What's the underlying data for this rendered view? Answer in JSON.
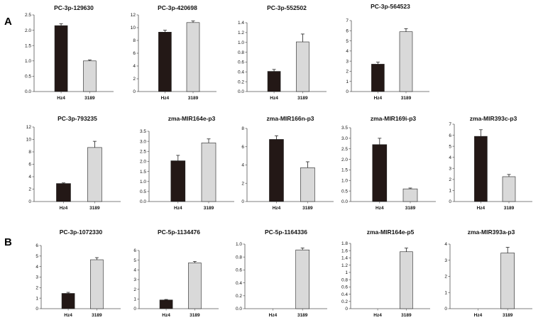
{
  "panels": {
    "a_label": "A",
    "b_label": "B"
  },
  "colors": {
    "dark_bar": "#231816",
    "light_bar": "#d9d9d9",
    "bar_stroke": "#222222",
    "axis": "#555555",
    "error_bar": "#222222"
  },
  "chart_data": [
    {
      "type": "bar",
      "title": "PC-3p-129630",
      "categories": [
        "Hz4",
        "3189"
      ],
      "values": [
        2.15,
        1.0
      ],
      "errors": [
        0.06,
        0.03
      ],
      "ylim": [
        0,
        2.5
      ],
      "yticks": [
        "0.0",
        "0.5",
        "1.0",
        "1.5",
        "2.0",
        "2.5"
      ],
      "xlabel": "",
      "ylabel": "",
      "grid": false
    },
    {
      "type": "bar",
      "title": "PC-3p-420698",
      "categories": [
        "Hz4",
        "3189"
      ],
      "values": [
        9.3,
        10.8
      ],
      "errors": [
        0.3,
        0.25
      ],
      "ylim": [
        0,
        12
      ],
      "yticks": [
        "0",
        "2",
        "4",
        "6",
        "8",
        "10",
        "12"
      ],
      "xlabel": "",
      "ylabel": "",
      "grid": false
    },
    {
      "type": "bar",
      "title": "PC-3p-552502",
      "categories": [
        "Hz4",
        "3189"
      ],
      "values": [
        0.41,
        1.01
      ],
      "errors": [
        0.04,
        0.16
      ],
      "ylim": [
        0,
        1.4
      ],
      "yticks": [
        "0.0",
        "0.2",
        "0.4",
        "0.6",
        "0.8",
        "1.0",
        "1.2",
        "1.4"
      ],
      "xlabel": "",
      "ylabel": "",
      "grid": false
    },
    {
      "type": "bar",
      "title": "PC-3p-564523",
      "categories": [
        "Hz4",
        "3189"
      ],
      "values": [
        2.7,
        5.9
      ],
      "errors": [
        0.2,
        0.3
      ],
      "ylim": [
        0,
        7
      ],
      "yticks": [
        "0",
        "1",
        "2",
        "3",
        "4",
        "5",
        "6",
        "7"
      ],
      "xlabel": "",
      "ylabel": "",
      "grid": false
    },
    {
      "type": "bar",
      "title": "PC-3p-793235",
      "categories": [
        "Hz4",
        "3189"
      ],
      "values": [
        2.9,
        8.7
      ],
      "errors": [
        0.1,
        1.0
      ],
      "ylim": [
        0,
        12
      ],
      "yticks": [
        "0",
        "2",
        "4",
        "6",
        "8",
        "10",
        "12"
      ],
      "xlabel": "",
      "ylabel": "",
      "grid": false
    },
    {
      "type": "bar",
      "title": "zma-MIR164e-p3",
      "categories": [
        "Hz4",
        "3189"
      ],
      "values": [
        2.03,
        2.92
      ],
      "errors": [
        0.27,
        0.2
      ],
      "ylim": [
        0,
        3.5
      ],
      "yticks": [
        "0.0",
        "0.5",
        "1.0",
        "1.5",
        "2.0",
        "2.5",
        "3.0",
        "3.5"
      ],
      "xlabel": "",
      "ylabel": "",
      "grid": false
    },
    {
      "type": "bar",
      "title": "zma-MIR166n-p3",
      "categories": [
        "Hz4",
        "3189"
      ],
      "values": [
        6.8,
        3.7
      ],
      "errors": [
        0.4,
        0.65
      ],
      "ylim": [
        0,
        8
      ],
      "yticks": [
        "0",
        "2",
        "4",
        "6",
        "8"
      ],
      "xlabel": "",
      "ylabel": "",
      "grid": false
    },
    {
      "type": "bar",
      "title": "zma-MIR169i-p3",
      "categories": [
        "Hz4",
        "3189"
      ],
      "values": [
        2.7,
        0.6
      ],
      "errors": [
        0.3,
        0.04
      ],
      "ylim": [
        0,
        3.5
      ],
      "yticks": [
        "0.0",
        "0.5",
        "1.0",
        "1.5",
        "2.0",
        "2.5",
        "3.0",
        "3.5"
      ],
      "xlabel": "",
      "ylabel": "",
      "grid": false
    },
    {
      "type": "bar",
      "title": "zma-MIR393c-p3",
      "categories": [
        "Hz4",
        "3189"
      ],
      "values": [
        5.9,
        2.25
      ],
      "errors": [
        0.6,
        0.2
      ],
      "ylim": [
        0,
        7
      ],
      "yticks": [
        "0",
        "1",
        "2",
        "3",
        "4",
        "5",
        "6",
        "7"
      ],
      "xlabel": "",
      "ylabel": "",
      "grid": false
    },
    {
      "type": "bar",
      "title": "PC-3p-1072330",
      "categories": [
        "Hz4",
        "3189"
      ],
      "values": [
        1.45,
        4.65
      ],
      "errors": [
        0.1,
        0.2
      ],
      "ylim": [
        0,
        6
      ],
      "yticks": [
        "0",
        "1",
        "2",
        "3",
        "4",
        "5",
        "6"
      ],
      "xlabel": "",
      "ylabel": "",
      "grid": false
    },
    {
      "type": "bar",
      "title": "PC-5p-1134476",
      "categories": [
        "Hz4",
        "3189"
      ],
      "values": [
        0.9,
        4.72
      ],
      "errors": [
        0.05,
        0.15
      ],
      "ylim": [
        0,
        6
      ],
      "yticks": [
        "0",
        "1",
        "2",
        "3",
        "4",
        "5",
        "6"
      ],
      "xlabel": "",
      "ylabel": "",
      "grid": false
    },
    {
      "type": "bar",
      "title": "PC-5p-1164336",
      "categories": [
        "Hz4",
        "3189"
      ],
      "values": [
        0.0,
        0.91
      ],
      "errors": [
        0.0,
        0.03
      ],
      "ylim": [
        0,
        1.0
      ],
      "yticks": [
        "0.0",
        "0.2",
        "0.4",
        "0.6",
        "0.8",
        "1.0"
      ],
      "xlabel": "",
      "ylabel": "",
      "grid": false
    },
    {
      "type": "bar",
      "title": "zma-MIR164e-p5",
      "categories": [
        "Hz4",
        "3189"
      ],
      "values": [
        0.0,
        1.57
      ],
      "errors": [
        0.0,
        0.1
      ],
      "ylim": [
        0,
        1.8
      ],
      "yticks": [
        "0",
        "0.2",
        "0.4",
        "0.6",
        "0.8",
        "1",
        "1.2",
        "1.4",
        "1.6",
        "1.8"
      ],
      "xlabel": "",
      "ylabel": "",
      "grid": false
    },
    {
      "type": "bar",
      "title": "zma-MIR393a-p3",
      "categories": [
        "Hz4",
        "3189"
      ],
      "values": [
        0.0,
        3.45
      ],
      "errors": [
        0.0,
        0.35
      ],
      "ylim": [
        0,
        4
      ],
      "yticks": [
        "0",
        "1",
        "2",
        "3",
        "4"
      ],
      "xlabel": "",
      "ylabel": "",
      "grid": false
    }
  ]
}
